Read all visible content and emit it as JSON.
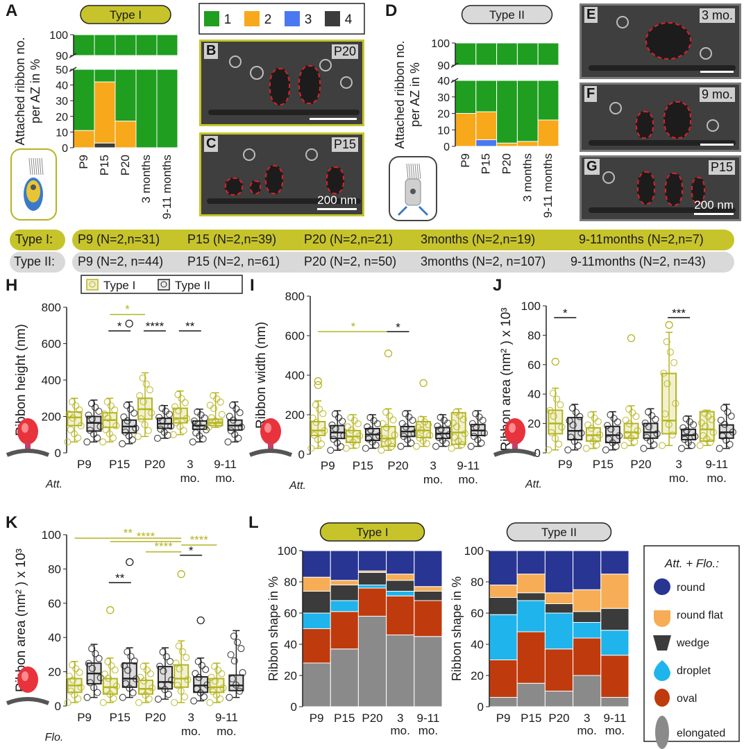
{
  "panel_letters": {
    "A": "A",
    "B": "B",
    "C": "C",
    "D": "D",
    "E": "E",
    "F": "F",
    "G": "G",
    "H": "H",
    "I": "I",
    "J": "J",
    "K": "K",
    "L": "L"
  },
  "colors": {
    "type1": "#b5b421",
    "type1_fill": "#d8d67a",
    "type2": "#222222",
    "type2_fill": "#9a9a9a",
    "n1": "#1f9e1f",
    "n2": "#f7a81b",
    "n3": "#4a78f0",
    "n4": "#3c3c3c",
    "round": "#283593",
    "round_flat": "#f6ad55",
    "wedge": "#3b3b3b",
    "droplet": "#1fb4ec",
    "oval": "#bf3b0d",
    "elongated": "#8a8a8a",
    "pill_type1": "#c6c42a",
    "pill_type2": "#d9d9d9"
  },
  "top_legend": {
    "items": [
      {
        "label": "1",
        "color": "#1f9e1f"
      },
      {
        "label": "2",
        "color": "#f7a81b"
      },
      {
        "label": "3",
        "color": "#4a78f0"
      },
      {
        "label": "4",
        "color": "#3c3c3c"
      }
    ]
  },
  "em_panels": {
    "B": {
      "letter": "B",
      "tag": "P20"
    },
    "C": {
      "letter": "C",
      "tag": "P15",
      "scale": "200 nm"
    },
    "E": {
      "letter": "E",
      "tag": "3 mo."
    },
    "F": {
      "letter": "F",
      "tag": "9 mo."
    },
    "G": {
      "letter": "G",
      "tag": "P15",
      "scale": "200 nm"
    }
  },
  "n_rows": {
    "type1": {
      "label": "Type I:",
      "entries": [
        "P9 (N=2,n=31)",
        "P15 (N=2,n=39)",
        "P20 (N=2,n=21)",
        "3months (N=2,n=19)",
        "9-11months (N=2,n=7)"
      ]
    },
    "type2": {
      "label": "Type II:",
      "entries": [
        "P9 (N=2, n=44)",
        "P15 (N=2, n=61)",
        "P20 (N=2, n=50)",
        "3months (N=2, n=107)",
        "9-11months (N=2, n=43)"
      ]
    }
  },
  "icon_labels": {
    "att": "Att.",
    "flo": "Flo."
  },
  "chart_data": [
    {
      "panel": "A",
      "type": "bar",
      "stacked": true,
      "title": "Type I",
      "ylabel": "Attached ribbon no. per AZ in %",
      "categories": [
        "P9",
        "P15",
        "P20",
        "3 months",
        "9-11 months"
      ],
      "axis_break": {
        "lower": [
          0,
          50
        ],
        "upper": [
          90,
          100
        ]
      },
      "y_ticks_lower": [
        0,
        10,
        20,
        30,
        40,
        50
      ],
      "y_ticks_upper": [
        90,
        100
      ],
      "series": [
        {
          "name": "4",
          "values": [
            0,
            3,
            0,
            0,
            0
          ]
        },
        {
          "name": "3",
          "values": [
            0,
            0,
            0,
            0,
            0
          ]
        },
        {
          "name": "2",
          "values": [
            11,
            39,
            17,
            0,
            0
          ]
        },
        {
          "name": "1",
          "values": [
            89,
            58,
            83,
            100,
            100
          ]
        }
      ]
    },
    {
      "panel": "D",
      "type": "bar",
      "stacked": true,
      "title": "Type II",
      "ylabel": "Attached ribbon no. per AZ in %",
      "categories": [
        "P9",
        "P15",
        "P20",
        "3 months",
        "9-11 months"
      ],
      "axis_break": {
        "lower": [
          0,
          40
        ],
        "upper": [
          90,
          100
        ]
      },
      "y_ticks_lower": [
        0,
        10,
        20,
        30,
        40
      ],
      "y_ticks_upper": [
        90,
        100
      ],
      "series": [
        {
          "name": "4",
          "values": [
            0,
            0,
            0,
            0,
            0
          ]
        },
        {
          "name": "3",
          "values": [
            0,
            4,
            0,
            0,
            0
          ]
        },
        {
          "name": "2",
          "values": [
            20,
            17,
            2,
            3,
            16
          ]
        },
        {
          "name": "1",
          "values": [
            80,
            79,
            98,
            97,
            84
          ]
        }
      ]
    },
    {
      "panel": "H",
      "type": "box",
      "ylabel": "Ribbon height (nm)",
      "ylim": [
        0,
        800
      ],
      "yticks": [
        0,
        200,
        400,
        600,
        800
      ],
      "categories": [
        "P9",
        "P15",
        "P20",
        "3 mo.",
        "9-11 mo."
      ],
      "condition": "Att.",
      "legend": [
        "Type I",
        "Type II"
      ],
      "type1": [
        {
          "min": 60,
          "q1": 150,
          "med": 195,
          "q3": 225,
          "max": 300
        },
        {
          "min": 60,
          "q1": 140,
          "med": 180,
          "q3": 220,
          "max": 300
        },
        {
          "min": 90,
          "q1": 185,
          "med": 240,
          "q3": 300,
          "max": 440
        },
        {
          "min": 100,
          "q1": 165,
          "med": 190,
          "q3": 245,
          "max": 340
        },
        {
          "min": 140,
          "q1": 150,
          "med": 165,
          "q3": 185,
          "max": 330
        }
      ],
      "type2": [
        {
          "min": 60,
          "q1": 120,
          "med": 165,
          "q3": 200,
          "max": 290
        },
        {
          "min": 50,
          "q1": 110,
          "med": 145,
          "q3": 180,
          "max": 280
        },
        {
          "min": 80,
          "q1": 135,
          "med": 160,
          "q3": 190,
          "max": 260
        },
        {
          "min": 60,
          "q1": 130,
          "med": 150,
          "q3": 175,
          "max": 240
        },
        {
          "min": 60,
          "q1": 125,
          "med": 150,
          "q3": 180,
          "max": 280
        }
      ],
      "outliers2": [
        [
          1,
          710
        ]
      ],
      "sig": [
        {
          "text": "*",
          "from": 1,
          "to": 2,
          "y": 760,
          "color": "type1"
        },
        {
          "text": "*",
          "cat": 1,
          "y": 670
        },
        {
          "text": "****",
          "cat": 2,
          "y": 670
        },
        {
          "text": "**",
          "cat": 3,
          "y": 670
        }
      ]
    },
    {
      "panel": "I",
      "type": "box",
      "ylabel": "Ribbon width (nm)",
      "ylim": [
        0,
        800
      ],
      "yticks": [
        0,
        200,
        400,
        600,
        800
      ],
      "categories": [
        "P9",
        "P15",
        "P20",
        "3 mo.",
        "9-11 mo."
      ],
      "condition": "Att.",
      "type1": [
        {
          "min": 30,
          "q1": 95,
          "med": 120,
          "q3": 165,
          "max": 270
        },
        {
          "min": 30,
          "q1": 60,
          "med": 90,
          "q3": 120,
          "max": 200
        },
        {
          "min": 20,
          "q1": 40,
          "med": 80,
          "q3": 140,
          "max": 230
        },
        {
          "min": 40,
          "q1": 85,
          "med": 120,
          "q3": 165,
          "max": 190
        },
        {
          "min": 30,
          "q1": 50,
          "med": 110,
          "q3": 210,
          "max": 230
        }
      ],
      "type2": [
        {
          "min": 20,
          "q1": 80,
          "med": 110,
          "q3": 145,
          "max": 220
        },
        {
          "min": 30,
          "q1": 70,
          "med": 100,
          "q3": 130,
          "max": 200
        },
        {
          "min": 40,
          "q1": 90,
          "med": 115,
          "q3": 140,
          "max": 220
        },
        {
          "min": 40,
          "q1": 80,
          "med": 105,
          "q3": 135,
          "max": 200
        },
        {
          "min": 40,
          "q1": 95,
          "med": 120,
          "q3": 150,
          "max": 220
        }
      ],
      "outliers1": [
        [
          2,
          510
        ],
        [
          0,
          370
        ],
        [
          0,
          350
        ],
        [
          3,
          360
        ]
      ],
      "sig": [
        {
          "text": "*",
          "from": 0,
          "to": 2,
          "y": 620,
          "color": "type1"
        },
        {
          "text": "*",
          "cat": 2,
          "y": 620
        }
      ]
    },
    {
      "panel": "J",
      "type": "box",
      "ylabel": "Ribbon area (nm^2) x 10^3",
      "ylim": [
        0,
        100
      ],
      "yticks": [
        0,
        20,
        40,
        60,
        80,
        100
      ],
      "categories": [
        "P9",
        "P15",
        "P20",
        "3 mo.",
        "9-11 mo."
      ],
      "condition": "Att.",
      "type1": [
        {
          "min": 2,
          "q1": 13,
          "med": 20,
          "q3": 29,
          "max": 44
        },
        {
          "min": 3,
          "q1": 8,
          "med": 12,
          "q3": 17,
          "max": 28
        },
        {
          "min": 5,
          "q1": 10,
          "med": 14,
          "q3": 20,
          "max": 32
        },
        {
          "min": 5,
          "q1": 13,
          "med": 22,
          "q3": 54,
          "max": 82
        },
        {
          "min": 5,
          "q1": 8,
          "med": 16,
          "q3": 28,
          "max": 29
        }
      ],
      "type2": [
        {
          "min": 2,
          "q1": 9,
          "med": 15,
          "q3": 24,
          "max": 33
        },
        {
          "min": 2,
          "q1": 7,
          "med": 12,
          "q3": 18,
          "max": 28
        },
        {
          "min": 3,
          "q1": 10,
          "med": 14,
          "q3": 20,
          "max": 30
        },
        {
          "min": 3,
          "q1": 9,
          "med": 12,
          "q3": 16,
          "max": 25
        },
        {
          "min": 3,
          "q1": 10,
          "med": 14,
          "q3": 19,
          "max": 33
        }
      ],
      "outliers1": [
        [
          2,
          78
        ],
        [
          3,
          87
        ],
        [
          0,
          62
        ]
      ],
      "sig": [
        {
          "text": "*",
          "cat": 0,
          "y": 92
        },
        {
          "text": "***",
          "cat": 3,
          "y": 92
        }
      ]
    },
    {
      "panel": "K",
      "type": "box",
      "ylabel": "Ribbon area (nm^2) x 10^3",
      "ylim": [
        0,
        100
      ],
      "yticks": [
        0,
        20,
        40,
        60,
        80,
        100
      ],
      "categories": [
        "P9",
        "P15",
        "P20",
        "3 mo.",
        "9-11 mo."
      ],
      "condition": "Flo.",
      "type1": [
        {
          "min": 2,
          "q1": 8,
          "med": 12,
          "q3": 16,
          "max": 26
        },
        {
          "min": 2,
          "q1": 7,
          "med": 11,
          "q3": 16,
          "max": 28
        },
        {
          "min": 2,
          "q1": 7,
          "med": 10,
          "q3": 15,
          "max": 25
        },
        {
          "min": 2,
          "q1": 11,
          "med": 16,
          "q3": 24,
          "max": 38
        },
        {
          "min": 2,
          "q1": 8,
          "med": 11,
          "q3": 16,
          "max": 25
        }
      ],
      "type2": [
        {
          "min": 5,
          "q1": 13,
          "med": 19,
          "q3": 25,
          "max": 36
        },
        {
          "min": 5,
          "q1": 11,
          "med": 16,
          "q3": 25,
          "max": 34
        },
        {
          "min": 4,
          "q1": 10,
          "med": 14,
          "q3": 23,
          "max": 34
        },
        {
          "min": 3,
          "q1": 8,
          "med": 12,
          "q3": 17,
          "max": 28
        },
        {
          "min": 5,
          "q1": 9,
          "med": 12,
          "q3": 18,
          "max": 44
        }
      ],
      "outliers1": [
        [
          3,
          77
        ],
        [
          1,
          56
        ]
      ],
      "outliers2": [
        [
          1,
          84
        ],
        [
          3,
          50
        ]
      ],
      "sig": [
        {
          "text": "**",
          "y": 98,
          "from": 0,
          "to": 3,
          "color": "type1"
        },
        {
          "text": "****",
          "y": 96,
          "from": 1,
          "to": 3,
          "color": "type1"
        },
        {
          "text": "****",
          "y": 90,
          "from": 2,
          "to": 3,
          "color": "type1"
        },
        {
          "text": "****",
          "y": 94,
          "from": 3,
          "to": 4,
          "color": "type1"
        },
        {
          "text": "*",
          "cat": 3,
          "y": 88
        },
        {
          "text": "**",
          "cat": 1,
          "y": 72
        }
      ]
    },
    {
      "panel": "L",
      "type": "bar",
      "stacked": true,
      "title": "Type I",
      "ylabel": "Ribbon shape in %",
      "ylim": [
        0,
        100
      ],
      "yticks": [
        0,
        20,
        40,
        60,
        80,
        100
      ],
      "categories": [
        "P9",
        "P15",
        "P20",
        "3 mo.",
        "9-11 mo."
      ],
      "series": [
        {
          "name": "elongated",
          "values": [
            28,
            37,
            58,
            46,
            45
          ]
        },
        {
          "name": "oval",
          "values": [
            22,
            24,
            18,
            25,
            23
          ]
        },
        {
          "name": "droplet",
          "values": [
            10,
            7,
            2,
            3,
            0
          ]
        },
        {
          "name": "wedge",
          "values": [
            14,
            10,
            8,
            7,
            6
          ]
        },
        {
          "name": "round flat",
          "values": [
            9,
            3,
            1,
            4,
            3
          ]
        },
        {
          "name": "round",
          "values": [
            17,
            19,
            13,
            15,
            23
          ]
        }
      ]
    },
    {
      "panel": "L",
      "type": "bar",
      "stacked": true,
      "title": "Type II",
      "ylabel": "Ribbon shape in %",
      "ylim": [
        0,
        100
      ],
      "yticks": [
        0,
        20,
        40,
        60,
        80,
        100
      ],
      "categories": [
        "P9",
        "P15",
        "P20",
        "3 mo.",
        "9-11 mo."
      ],
      "series": [
        {
          "name": "elongated",
          "values": [
            6,
            15,
            10,
            20,
            6
          ]
        },
        {
          "name": "oval",
          "values": [
            24,
            33,
            27,
            24,
            27
          ]
        },
        {
          "name": "droplet",
          "values": [
            29,
            20,
            23,
            10,
            16
          ]
        },
        {
          "name": "wedge",
          "values": [
            11,
            5,
            6,
            7,
            14
          ]
        },
        {
          "name": "round flat",
          "values": [
            8,
            12,
            7,
            14,
            22
          ]
        },
        {
          "name": "round",
          "values": [
            22,
            15,
            27,
            25,
            15
          ]
        }
      ]
    }
  ],
  "shape_legend": {
    "title": "Att. + Flo.:",
    "items": [
      "round",
      "round flat",
      "wedge",
      "droplet",
      "oval",
      "elongated"
    ]
  }
}
